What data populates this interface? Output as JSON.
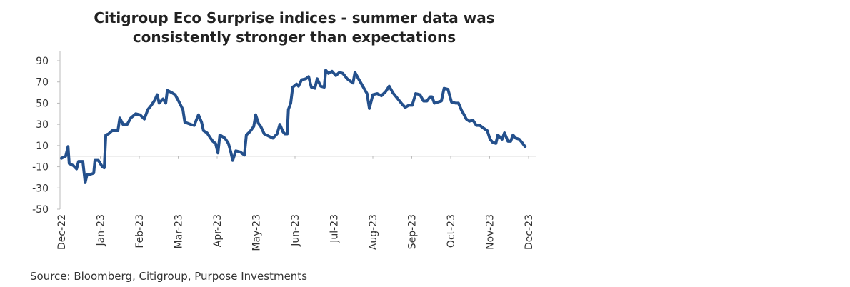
{
  "chart_data": {
    "type": "line",
    "title": [
      "Citigroup Eco Surprise indices - summer data was",
      "consistently stronger than expectations"
    ],
    "source": "Source: Bloomberg, Citigroup, Purpose Investments",
    "color": "#24508c",
    "xlim": [
      0,
      12
    ],
    "xticks": [
      {
        "value": 0,
        "label": "Dec-22"
      },
      {
        "value": 1,
        "label": "Jan-23"
      },
      {
        "value": 2,
        "label": "Feb-23"
      },
      {
        "value": 3,
        "label": "Mar-23"
      },
      {
        "value": 4,
        "label": "Apr-23"
      },
      {
        "value": 5,
        "label": "May-23"
      },
      {
        "value": 6,
        "label": "Jun-23"
      },
      {
        "value": 7,
        "label": "Jul-23"
      },
      {
        "value": 8,
        "label": "Aug-23"
      },
      {
        "value": 9,
        "label": "Sep-23"
      },
      {
        "value": 10,
        "label": "Oct-23"
      },
      {
        "value": 11,
        "label": "Nov-23"
      },
      {
        "value": 12,
        "label": "Dec-23"
      }
    ],
    "ylim": [
      -50,
      90
    ],
    "yticks": [
      90,
      70,
      50,
      30,
      10,
      -10,
      -30,
      -50
    ],
    "x": [
      0,
      0.11,
      0.17,
      0.2,
      0.31,
      0.39,
      0.44,
      0.55,
      0.61,
      0.66,
      0.75,
      0.83,
      0.86,
      0.95,
      1.05,
      1.1,
      1.14,
      1.21,
      1.3,
      1.45,
      1.5,
      1.58,
      1.69,
      1.78,
      1.91,
      2.02,
      2.13,
      2.22,
      2.31,
      2.4,
      2.46,
      2.51,
      2.61,
      2.68,
      2.72,
      2.83,
      2.92,
      3.01,
      3.12,
      3.17,
      3.32,
      3.41,
      3.52,
      3.6,
      3.65,
      3.74,
      3.83,
      3.89,
      3.96,
      4.02,
      4.07,
      4.2,
      4.29,
      4.35,
      4.4,
      4.48,
      4.59,
      4.7,
      4.75,
      4.84,
      4.94,
      4.99,
      5.06,
      5.12,
      5.21,
      5.32,
      5.43,
      5.54,
      5.61,
      5.69,
      5.74,
      5.8,
      5.83,
      5.89,
      5.94,
      6.04,
      6.09,
      6.17,
      6.28,
      6.35,
      6.42,
      6.51,
      6.57,
      6.66,
      6.75,
      6.79,
      6.86,
      6.95,
      7.05,
      7.14,
      7.23,
      7.34,
      7.41,
      7.49,
      7.54,
      7.63,
      7.74,
      7.85,
      7.91,
      8.0,
      8.11,
      8.22,
      8.33,
      8.42,
      8.51,
      8.62,
      8.73,
      8.83,
      8.92,
      9.01,
      9.1,
      9.21,
      9.3,
      9.39,
      9.47,
      9.52,
      9.58,
      9.67,
      9.76,
      9.83,
      9.93,
      10.02,
      10.13,
      10.2,
      10.28,
      10.33,
      10.4,
      10.48,
      10.57,
      10.66,
      10.75,
      10.86,
      10.94,
      11.01,
      11.08,
      11.16,
      11.21,
      11.32,
      11.38,
      11.47,
      11.54,
      11.6,
      11.67,
      11.76,
      11.85,
      11.91
    ],
    "values": [
      -2,
      0,
      9,
      -7,
      -9,
      -12,
      -5,
      -5,
      -25,
      -17,
      -17,
      -16,
      -4,
      -4,
      -10,
      -11,
      20,
      21,
      24,
      24,
      36,
      30,
      30,
      36,
      40,
      39,
      35,
      44,
      48,
      53,
      58,
      50,
      54,
      50,
      62,
      60,
      58,
      52,
      44,
      32,
      30,
      29,
      39,
      32,
      24,
      22,
      17,
      14,
      12,
      3,
      20,
      17,
      12,
      4,
      -4,
      5,
      4,
      1,
      20,
      23,
      28,
      39,
      31,
      28,
      21,
      19,
      17,
      21,
      30,
      23,
      21,
      21,
      44,
      50,
      65,
      68,
      66,
      72,
      73,
      75,
      65,
      64,
      73,
      66,
      65,
      81,
      78,
      80,
      76,
      79,
      78,
      73,
      71,
      69,
      79,
      73,
      66,
      59,
      45,
      58,
      59,
      57,
      61,
      66,
      60,
      55,
      50,
      46,
      48,
      48,
      59,
      58,
      52,
      52,
      56,
      56,
      50,
      51,
      52,
      64,
      63,
      51,
      50,
      50,
      43,
      40,
      35,
      33,
      34,
      29,
      29,
      26,
      24,
      16,
      13,
      12,
      20,
      16,
      22,
      14,
      14,
      20,
      17,
      16,
      12,
      9
    ]
  }
}
